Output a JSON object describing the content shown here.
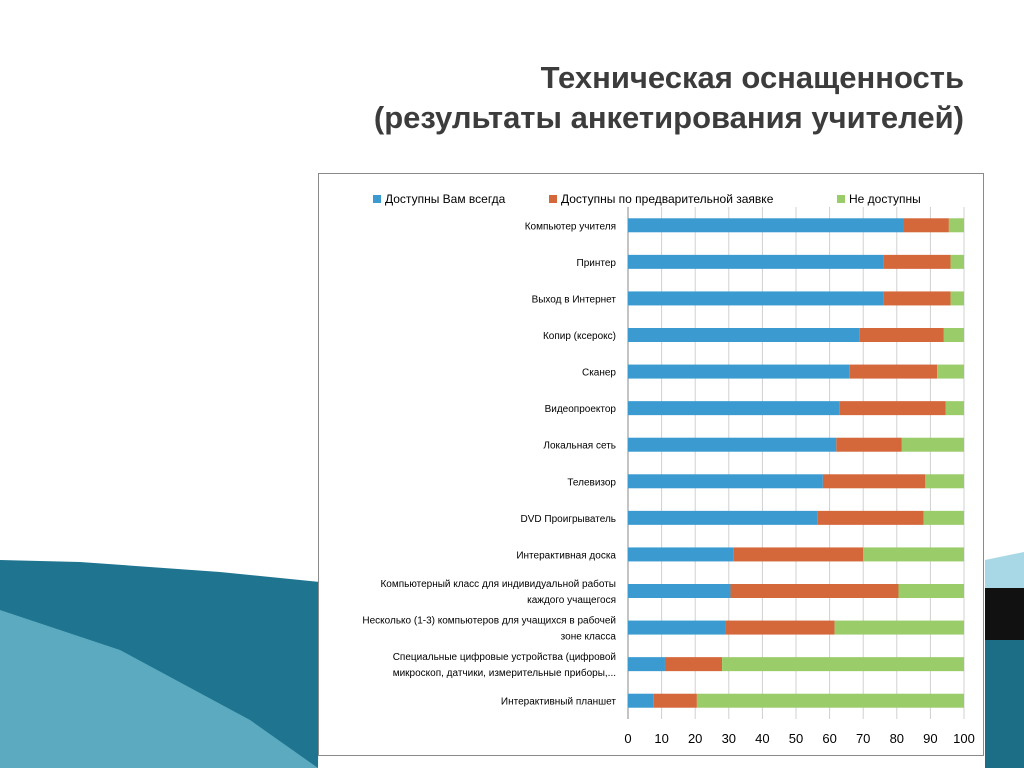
{
  "title": {
    "line1": "Техническая оснащенность",
    "line2": "(результаты анкетирования учителей)"
  },
  "chart_data": {
    "type": "bar",
    "orientation": "horizontal",
    "stacked": true,
    "xlim": [
      0,
      100
    ],
    "xticks": [
      0,
      10,
      20,
      30,
      40,
      50,
      60,
      70,
      80,
      90,
      100
    ],
    "grid": true,
    "legend_position": "top",
    "categories": [
      [
        "Компьютер учителя"
      ],
      [
        "Принтер"
      ],
      [
        "Выход в Интернет"
      ],
      [
        "Копир (ксерокс)"
      ],
      [
        "Сканер"
      ],
      [
        "Видеопроектор"
      ],
      [
        "Локальная сеть"
      ],
      [
        "Телевизор"
      ],
      [
        "DVD Проигрыватель"
      ],
      [
        "Интерактивная доска"
      ],
      [
        "Компьютерный класс для индивидуальной работы",
        "каждого учащегося"
      ],
      [
        "Несколько (1-3) компьютеров для учащихся в рабочей",
        "зоне класса"
      ],
      [
        "Специальные цифровые устройства (цифровой",
        "микроскоп, датчики, измерительные приборы,..."
      ],
      [
        "Интерактивный планшет"
      ]
    ],
    "series": [
      {
        "name": "Доступны Вам всегда",
        "color": "#3b9bd1",
        "values": [
          82,
          76,
          76,
          69,
          66,
          63,
          62,
          58,
          56.5,
          31.5,
          30.5,
          29,
          11,
          7.5
        ]
      },
      {
        "name": "Доступны по предварительной заявке",
        "color": "#d4683a",
        "values": [
          13.5,
          20,
          20,
          25,
          26,
          31.5,
          19.5,
          30.5,
          31.5,
          38.5,
          50,
          32.5,
          17,
          13
        ]
      },
      {
        "name": "Не доступны",
        "color": "#9bcc6a",
        "values": [
          4.5,
          4,
          4,
          6,
          8,
          5.5,
          18.5,
          11.5,
          12,
          30,
          19.5,
          38.5,
          72,
          79.5
        ]
      }
    ]
  }
}
